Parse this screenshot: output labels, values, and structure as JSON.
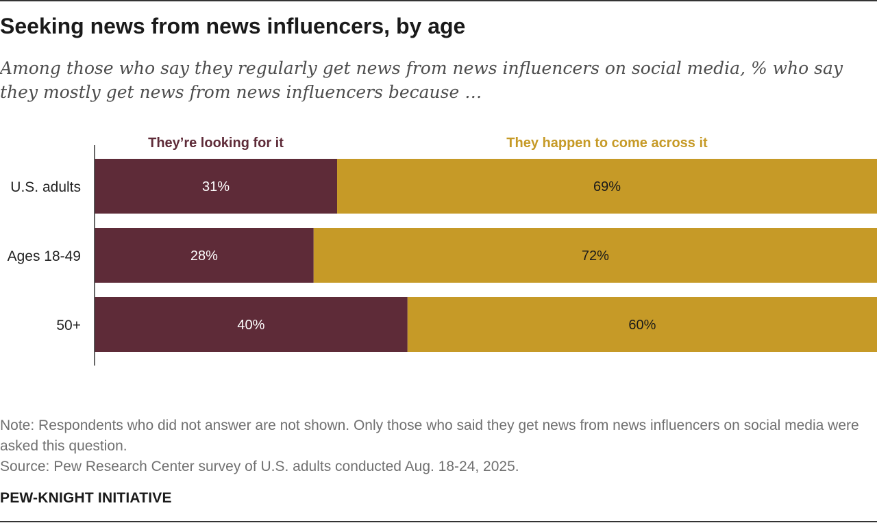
{
  "title": "Seeking news from news influencers, by age",
  "subtitle": "Among those who say they regularly get news from news influencers on social media, % who say they mostly get news from news influencers because …",
  "chart_data": {
    "type": "bar",
    "orientation": "horizontal",
    "stacked": true,
    "categories": [
      "U.S. adults",
      "Ages 18-49",
      "50+"
    ],
    "series": [
      {
        "name": "They’re looking for it",
        "values": [
          31,
          28,
          40
        ],
        "labels": [
          "31%",
          "28%",
          "40%"
        ],
        "color": "#5e2b38",
        "label_color": "#ffffff"
      },
      {
        "name": "They happen to come across it",
        "values": [
          69,
          72,
          60
        ],
        "labels": [
          "69%",
          "72%",
          "60%"
        ],
        "color": "#c69a27",
        "label_color": "#1a1a1a"
      }
    ],
    "xlim": [
      0,
      100
    ],
    "legend_placement": "top"
  },
  "notes": {
    "note": "Note: Respondents who did not answer are not shown. Only those who said they get news from news influencers on social media were asked this question.",
    "source": "Source: Pew Research Center survey of U.S. adults conducted Aug. 18-24, 2025."
  },
  "footer": "PEW-KNIGHT INITIATIVE"
}
